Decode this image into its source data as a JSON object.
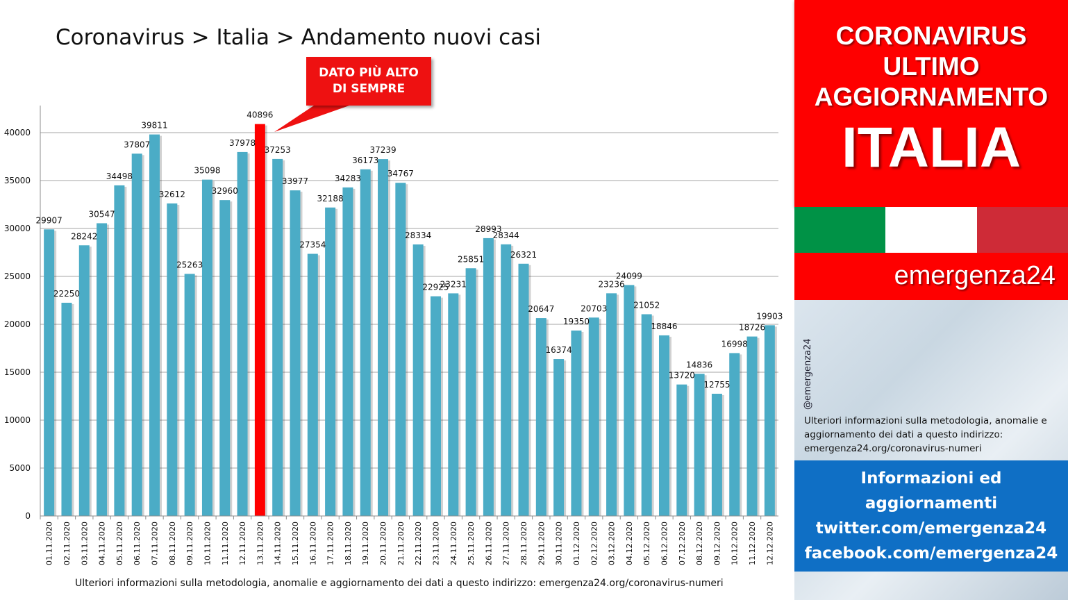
{
  "title": "Coronavirus > Italia > Andamento nuovi casi",
  "callout": {
    "line1": "DATO PIÙ ALTO",
    "line2": "DI SEMPRE"
  },
  "footer_note": "Ulteriori informazioni sulla metodologia, anomalie e aggiornamento dei dati a questo indirizzo: emergenza24.org/coronavirus-numeri",
  "panel": {
    "header_line1": "CORONAVIRUS",
    "header_line2": "ULTIMO",
    "header_line3": "AGGIORNAMENTO",
    "country": "ITALIA",
    "flag_colors": [
      "#009246",
      "#ffffff",
      "#ce2b37"
    ],
    "brand": "emergenza24",
    "handle": "@emergenza24",
    "note": "Ulteriori informazioni sulla metodologia, anomalie e aggiornamento dei dati a questo indirizzo: emergenza24.org/coronavirus-numeri",
    "info_line1": "Informazioni ed",
    "info_line2": "aggiornamenti",
    "info_line3": "twitter.com/emergenza24",
    "info_line4": "facebook.com/emergenza24"
  },
  "colors": {
    "bar": "#4bacc6",
    "highlight": "#ff0000",
    "accent_red": "#fe0000",
    "info_blue": "#0f6fc5"
  },
  "chart_data": {
    "type": "bar",
    "title": "Coronavirus > Italia > Andamento nuovi casi",
    "categories": [
      "01.11.2020",
      "02.11.2020",
      "03.11.2020",
      "04.11.2020",
      "05.11.2020",
      "06.11.2020",
      "07.11.2020",
      "08.11.2020",
      "09.11.2020",
      "10.11.2020",
      "11.11.2020",
      "12.11.2020",
      "13.11.2020",
      "14.11.2020",
      "15.11.2020",
      "16.11.2020",
      "17.11.2020",
      "18.11.2020",
      "19.11.2020",
      "20.11.2020",
      "21.11.2020",
      "22.11.2020",
      "23.11.2020",
      "24.11.2020",
      "25.11.2020",
      "26.11.2020",
      "27.11.2020",
      "28.11.2020",
      "29.11.2020",
      "30.11.2020",
      "01.12.2020",
      "02.12.2020",
      "03.12.2020",
      "04.12.2020",
      "05.12.2020",
      "06.12.2020",
      "07.12.2020",
      "08.12.2020",
      "09.12.2020",
      "10.12.2020",
      "11.12.2020",
      "12.12.2020"
    ],
    "values": [
      29907,
      22250,
      28242,
      30547,
      34498,
      37807,
      39811,
      32612,
      25263,
      35098,
      32960,
      37978,
      40896,
      37253,
      33977,
      27354,
      32188,
      34283,
      36173,
      37239,
      34767,
      28334,
      22925,
      23231,
      25851,
      28993,
      28344,
      26321,
      20647,
      16374,
      19350,
      20703,
      23236,
      24099,
      21052,
      18846,
      13720,
      14836,
      12755,
      16998,
      18726,
      19903
    ],
    "highlight_index": 12,
    "ylim": [
      0,
      40000
    ],
    "yticks": [
      0,
      5000,
      10000,
      15000,
      20000,
      25000,
      30000,
      35000,
      40000
    ],
    "grid": true,
    "legend": "none",
    "xlabel": "",
    "ylabel": ""
  }
}
